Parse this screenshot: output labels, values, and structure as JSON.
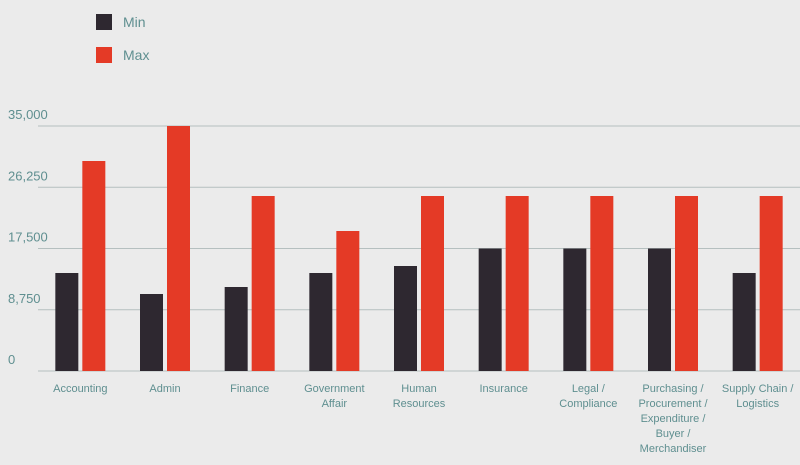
{
  "chart_data": {
    "type": "bar",
    "title": "",
    "xlabel": "",
    "ylabel": "",
    "ylim": [
      0,
      35000
    ],
    "yticks": [
      "0",
      "8,750",
      "17,500",
      "26,250",
      "35,000"
    ],
    "ytick_values": [
      0,
      8750,
      17500,
      26250,
      35000
    ],
    "grid": true,
    "legend_position": "top-left",
    "categories": [
      [
        "Accounting"
      ],
      [
        "Admin"
      ],
      [
        "Finance"
      ],
      [
        "Government",
        "Affair"
      ],
      [
        "Human",
        "Resources"
      ],
      [
        "Insurance"
      ],
      [
        "Legal /",
        "Compliance"
      ],
      [
        "Purchasing /",
        "Procurement /",
        "Expenditure /",
        "Buyer /",
        "Merchandiser"
      ],
      [
        "Supply Chain /",
        "Logistics"
      ]
    ],
    "series": [
      {
        "name": "Min",
        "color": "#2e2830",
        "values": [
          14000,
          11000,
          12000,
          14000,
          15000,
          17500,
          17500,
          17500,
          14000
        ]
      },
      {
        "name": "Max",
        "color": "#e43a26",
        "values": [
          30000,
          35000,
          25000,
          20000,
          25000,
          25000,
          25000,
          25000,
          25000
        ]
      }
    ]
  }
}
